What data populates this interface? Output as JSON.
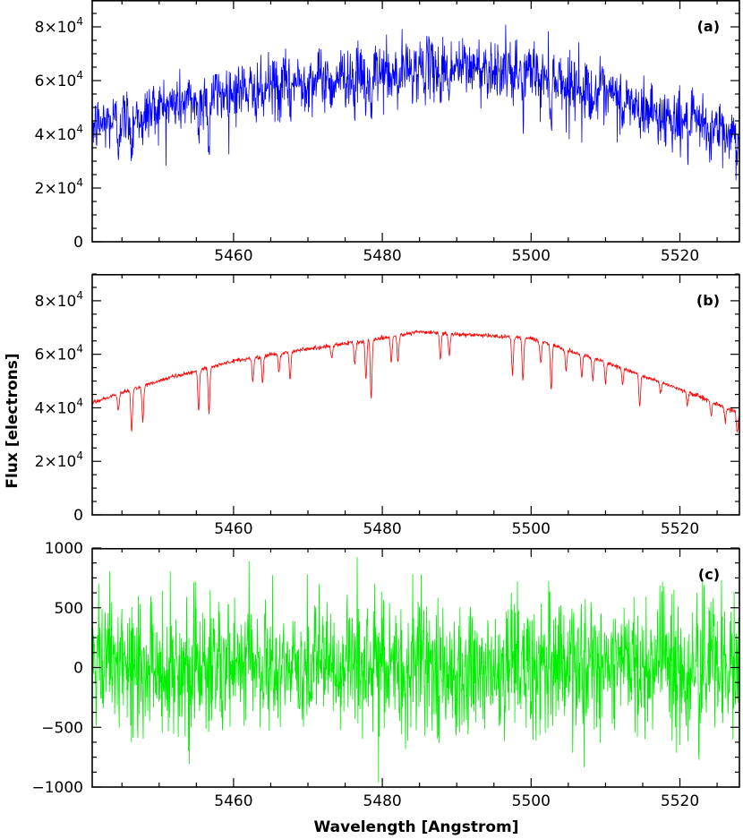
{
  "figure": {
    "ylabel": "Flux [electrons]",
    "xlabel": "Wavelength [Angstrom]"
  },
  "chart_data": [
    {
      "type": "line",
      "panel_label": "(a)",
      "description_series": "observed noisy spectrum",
      "color": "#0000ff",
      "xlim": [
        5441,
        5528
      ],
      "ylim": [
        0,
        90000
      ],
      "x_ticks": [
        5460,
        5480,
        5500,
        5520
      ],
      "y_ticks": [
        {
          "value": 0,
          "mantissa": "0",
          "exp": ""
        },
        {
          "value": 20000,
          "mantissa": "2×10",
          "exp": "4"
        },
        {
          "value": 40000,
          "mantissa": "4×10",
          "exp": "4"
        },
        {
          "value": 60000,
          "mantissa": "6×10",
          "exp": "4"
        },
        {
          "value": 80000,
          "mantissa": "8×10",
          "exp": "4"
        }
      ],
      "continuum_x": [
        5441,
        5450,
        5460,
        5470,
        5480,
        5485,
        5490,
        5500,
        5510,
        5520,
        5528
      ],
      "continuum_y": [
        43000,
        50000,
        56000,
        60000,
        63000,
        64500,
        65000,
        64000,
        55000,
        45000,
        40000
      ],
      "lines": [
        {
          "x": 5444.5,
          "depth": 9000
        },
        {
          "x": 5446.3,
          "depth": 14000
        },
        {
          "x": 5447.8,
          "depth": 12000
        },
        {
          "x": 5455.3,
          "depth": 13000
        },
        {
          "x": 5456.7,
          "depth": 20000
        },
        {
          "x": 5462.6,
          "depth": 7000
        },
        {
          "x": 5463.9,
          "depth": 9000
        },
        {
          "x": 5466.1,
          "depth": 7000
        },
        {
          "x": 5467.6,
          "depth": 8000
        },
        {
          "x": 5473.2,
          "depth": 7000
        },
        {
          "x": 5476.3,
          "depth": 8000
        },
        {
          "x": 5477.8,
          "depth": 12000
        },
        {
          "x": 5478.5,
          "depth": 18000
        },
        {
          "x": 5481.2,
          "depth": 8000
        },
        {
          "x": 5482.1,
          "depth": 9000
        },
        {
          "x": 5487.8,
          "depth": 8000
        },
        {
          "x": 5489.0,
          "depth": 7000
        },
        {
          "x": 5497.5,
          "depth": 12000
        },
        {
          "x": 5498.9,
          "depth": 13000
        },
        {
          "x": 5501.3,
          "depth": 9000
        },
        {
          "x": 5502.7,
          "depth": 14000
        },
        {
          "x": 5504.7,
          "depth": 7000
        },
        {
          "x": 5506.8,
          "depth": 8000
        },
        {
          "x": 5508.3,
          "depth": 7000
        },
        {
          "x": 5510.0,
          "depth": 7000
        },
        {
          "x": 5512.3,
          "depth": 6000
        },
        {
          "x": 5514.6,
          "depth": 10000
        },
        {
          "x": 5517.4,
          "depth": 5000
        },
        {
          "x": 5521.0,
          "depth": 5000
        },
        {
          "x": 5524.2,
          "depth": 5000
        },
        {
          "x": 5526.1,
          "depth": 5000
        },
        {
          "x": 5527.7,
          "depth": 8000
        }
      ],
      "noise_sigma": 5500
    },
    {
      "type": "line",
      "panel_label": "(b)",
      "description_series": "model spectrum",
      "color": "#ff0000",
      "xlim": [
        5441,
        5528
      ],
      "ylim": [
        0,
        90000
      ],
      "x_ticks": [
        5460,
        5480,
        5500,
        5520
      ],
      "y_ticks": [
        {
          "value": 0,
          "mantissa": "0",
          "exp": ""
        },
        {
          "value": 20000,
          "mantissa": "2×10",
          "exp": "4"
        },
        {
          "value": 40000,
          "mantissa": "4×10",
          "exp": "4"
        },
        {
          "value": 60000,
          "mantissa": "6×10",
          "exp": "4"
        },
        {
          "value": 80000,
          "mantissa": "8×10",
          "exp": "4"
        }
      ],
      "continuum_x": [
        5441,
        5450,
        5460,
        5470,
        5480,
        5485,
        5490,
        5500,
        5510,
        5520,
        5528
      ],
      "continuum_y": [
        42000,
        50000,
        57500,
        62000,
        66000,
        68500,
        67500,
        66000,
        57000,
        47000,
        38000
      ],
      "lines": [
        {
          "x": 5444.5,
          "depth": 6000
        },
        {
          "x": 5446.3,
          "depth": 15000
        },
        {
          "x": 5447.8,
          "depth": 13000
        },
        {
          "x": 5455.3,
          "depth": 15000
        },
        {
          "x": 5456.7,
          "depth": 17000
        },
        {
          "x": 5462.6,
          "depth": 9000
        },
        {
          "x": 5463.9,
          "depth": 10000
        },
        {
          "x": 5466.1,
          "depth": 7000
        },
        {
          "x": 5467.6,
          "depth": 10000
        },
        {
          "x": 5473.2,
          "depth": 5000
        },
        {
          "x": 5476.3,
          "depth": 9000
        },
        {
          "x": 5477.8,
          "depth": 14000
        },
        {
          "x": 5478.5,
          "depth": 22000
        },
        {
          "x": 5481.2,
          "depth": 9000
        },
        {
          "x": 5482.1,
          "depth": 10000
        },
        {
          "x": 5487.8,
          "depth": 10000
        },
        {
          "x": 5489.0,
          "depth": 8000
        },
        {
          "x": 5497.5,
          "depth": 14000
        },
        {
          "x": 5498.9,
          "depth": 16000
        },
        {
          "x": 5501.3,
          "depth": 8000
        },
        {
          "x": 5502.7,
          "depth": 17000
        },
        {
          "x": 5504.7,
          "depth": 8000
        },
        {
          "x": 5506.8,
          "depth": 9000
        },
        {
          "x": 5508.3,
          "depth": 8000
        },
        {
          "x": 5510.0,
          "depth": 8000
        },
        {
          "x": 5512.3,
          "depth": 6000
        },
        {
          "x": 5514.6,
          "depth": 12000
        },
        {
          "x": 5517.4,
          "depth": 4000
        },
        {
          "x": 5521.0,
          "depth": 5000
        },
        {
          "x": 5524.2,
          "depth": 5000
        },
        {
          "x": 5526.1,
          "depth": 5000
        },
        {
          "x": 5527.7,
          "depth": 8000
        }
      ],
      "noise_sigma": 400
    },
    {
      "type": "line",
      "panel_label": "(c)",
      "description_series": "residual (observed minus model)",
      "color": "#00ee00",
      "xlim": [
        5441,
        5528
      ],
      "ylim": [
        -1000,
        1000
      ],
      "x_ticks": [
        5460,
        5480,
        5500,
        5520
      ],
      "y_ticks": [
        {
          "value": -1000,
          "mantissa": "−1000",
          "exp": ""
        },
        {
          "value": -500,
          "mantissa": "−500",
          "exp": ""
        },
        {
          "value": 0,
          "mantissa": "0",
          "exp": ""
        },
        {
          "value": 500,
          "mantissa": "500",
          "exp": ""
        },
        {
          "value": 1000,
          "mantissa": "1000",
          "exp": ""
        }
      ],
      "continuum_x": [
        5441,
        5528
      ],
      "continuum_y": [
        0,
        0
      ],
      "lines": [],
      "noise_sigma": 280
    }
  ]
}
